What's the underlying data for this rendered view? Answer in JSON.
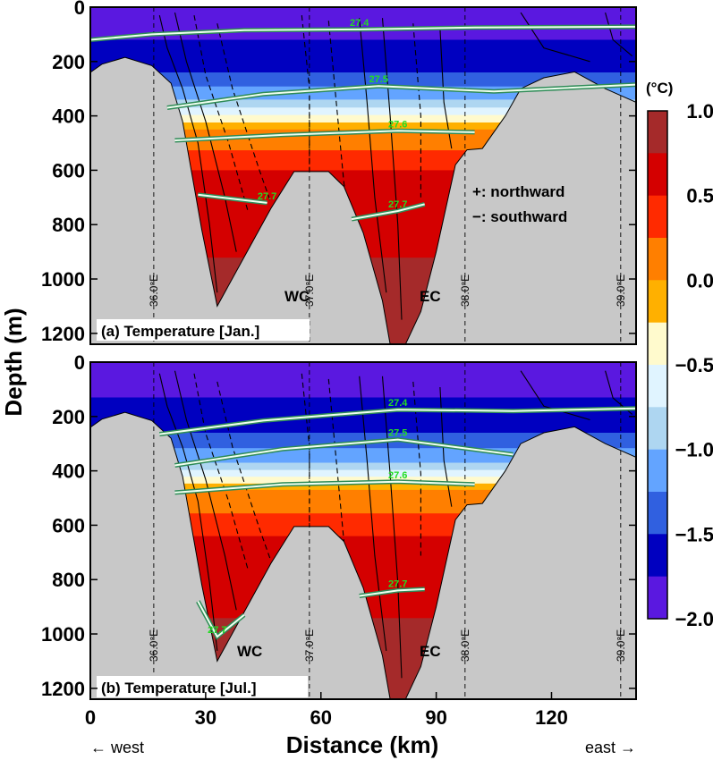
{
  "chart_data": {
    "type": "heatmap",
    "xlabel": "Distance (km)",
    "ylabel": "Depth (m)",
    "xlim": [
      0,
      142
    ],
    "ylim": [
      1240,
      0
    ],
    "x_ticks": [
      "0",
      "30",
      "60",
      "90",
      "120"
    ],
    "y_ticks": [
      "0",
      "200",
      "400",
      "600",
      "800",
      "1000",
      "1200"
    ],
    "direction_labels": {
      "west": "← west",
      "east": "east →"
    },
    "colorbar": {
      "unit": "(°C)",
      "ticks": [
        "1.0",
        "0.5",
        "0.0",
        "−0.5",
        "−1.0",
        "−1.5",
        "−2.0"
      ],
      "levels": [
        1.0,
        0.75,
        0.5,
        0.25,
        0.0,
        -0.25,
        -0.5,
        -0.75,
        -1.0,
        -1.25,
        -1.5,
        -1.75,
        -2.0
      ],
      "colors": [
        "#ff69b4",
        "#a52a2a",
        "#d40000",
        "#ff2a00",
        "#ff7f00",
        "#ffb000",
        "#fffacd",
        "#e0f4ff",
        "#aed6f1",
        "#63a4ff",
        "#3060e0",
        "#0000c0",
        "#5a18e0",
        "#9b3dff"
      ]
    },
    "legend_notes": [
      "+: northward",
      "−: southward"
    ],
    "longitudes": [
      {
        "label": "36.0°E",
        "km": 16.5
      },
      {
        "label": "37.0°E",
        "km": 57.0
      },
      {
        "label": "38.0°E",
        "km": 97.5
      },
      {
        "label": "39.0°E",
        "km": 138.0
      }
    ],
    "isopycnal_labels": [
      "27.4",
      "27.5",
      "27.6",
      "27.7"
    ],
    "panels": [
      {
        "title": "(a) Temperature [Jan.]",
        "channel_labels": [
          "WC",
          "EC"
        ],
        "layers": [
          {
            "temp_min": -2.0,
            "temp_max": -1.75,
            "depth_range_m": [
              0,
              120
            ]
          },
          {
            "temp_min": -1.75,
            "temp_max": -1.5,
            "depth_range_m": [
              120,
              240
            ]
          },
          {
            "temp_min": -1.5,
            "temp_max": -1.0,
            "depth_range_m": [
              240,
              340
            ]
          },
          {
            "temp_min": -1.0,
            "temp_max": 0.0,
            "depth_range_m": [
              340,
              450
            ]
          },
          {
            "temp_min": 0.0,
            "temp_max": 0.5,
            "depth_range_m": [
              450,
              600
            ]
          },
          {
            "temp_min": 0.5,
            "temp_max": 1.0,
            "depth_range_m": [
              600,
              1240
            ]
          }
        ],
        "isopycnals": [
          {
            "sigma": 27.4,
            "points_km_m": [
              [
                0,
                120
              ],
              [
                16,
                100
              ],
              [
                40,
                85
              ],
              [
                70,
                82
              ],
              [
                100,
                75
              ],
              [
                142,
                72
              ]
            ]
          },
          {
            "sigma": 27.5,
            "points_km_m": [
              [
                20,
                370
              ],
              [
                45,
                320
              ],
              [
                75,
                290
              ],
              [
                105,
                310
              ],
              [
                142,
                285
              ]
            ]
          },
          {
            "sigma": 27.6,
            "points_km_m": [
              [
                22,
                490
              ],
              [
                50,
                470
              ],
              [
                80,
                455
              ],
              [
                100,
                460
              ]
            ]
          },
          {
            "sigma": 27.7,
            "points_km_m": [
              [
                28,
                690
              ],
              [
                46,
                720
              ]
            ]
          },
          {
            "sigma": 27.7,
            "points_km_m": [
              [
                68,
                780
              ],
              [
                80,
                750
              ],
              [
                87,
                725
              ]
            ]
          }
        ]
      },
      {
        "title": "(b) Temperature [Jul.]",
        "channel_labels": [
          "WC",
          "EC"
        ],
        "layers": [
          {
            "temp_min": -2.0,
            "temp_max": -1.75,
            "depth_range_m": [
              0,
              130
            ]
          },
          {
            "temp_min": -1.75,
            "temp_max": -1.5,
            "depth_range_m": [
              130,
              260
            ]
          },
          {
            "temp_min": -1.5,
            "temp_max": -1.0,
            "depth_range_m": [
              260,
              370
            ]
          },
          {
            "temp_min": -1.0,
            "temp_max": 0.0,
            "depth_range_m": [
              370,
              470
            ]
          },
          {
            "temp_min": 0.0,
            "temp_max": 0.5,
            "depth_range_m": [
              470,
              640
            ]
          },
          {
            "temp_min": 0.5,
            "temp_max": 1.0,
            "depth_range_m": [
              640,
              1240
            ]
          }
        ],
        "isopycnals": [
          {
            "sigma": 27.4,
            "points_km_m": [
              [
                18,
                265
              ],
              [
                45,
                215
              ],
              [
                80,
                175
              ],
              [
                110,
                180
              ],
              [
                142,
                170
              ]
            ]
          },
          {
            "sigma": 27.5,
            "points_km_m": [
              [
                22,
                380
              ],
              [
                50,
                320
              ],
              [
                80,
                285
              ],
              [
                110,
                340
              ]
            ]
          },
          {
            "sigma": 27.6,
            "points_km_m": [
              [
                22,
                480
              ],
              [
                50,
                450
              ],
              [
                80,
                440
              ],
              [
                100,
                450
              ]
            ]
          },
          {
            "sigma": 27.7,
            "points_km_m": [
              [
                28,
                880
              ],
              [
                33,
                1010
              ],
              [
                40,
                930
              ]
            ]
          },
          {
            "sigma": 27.7,
            "points_km_m": [
              [
                70,
                860
              ],
              [
                80,
                840
              ],
              [
                87,
                835
              ]
            ]
          }
        ]
      }
    ]
  }
}
